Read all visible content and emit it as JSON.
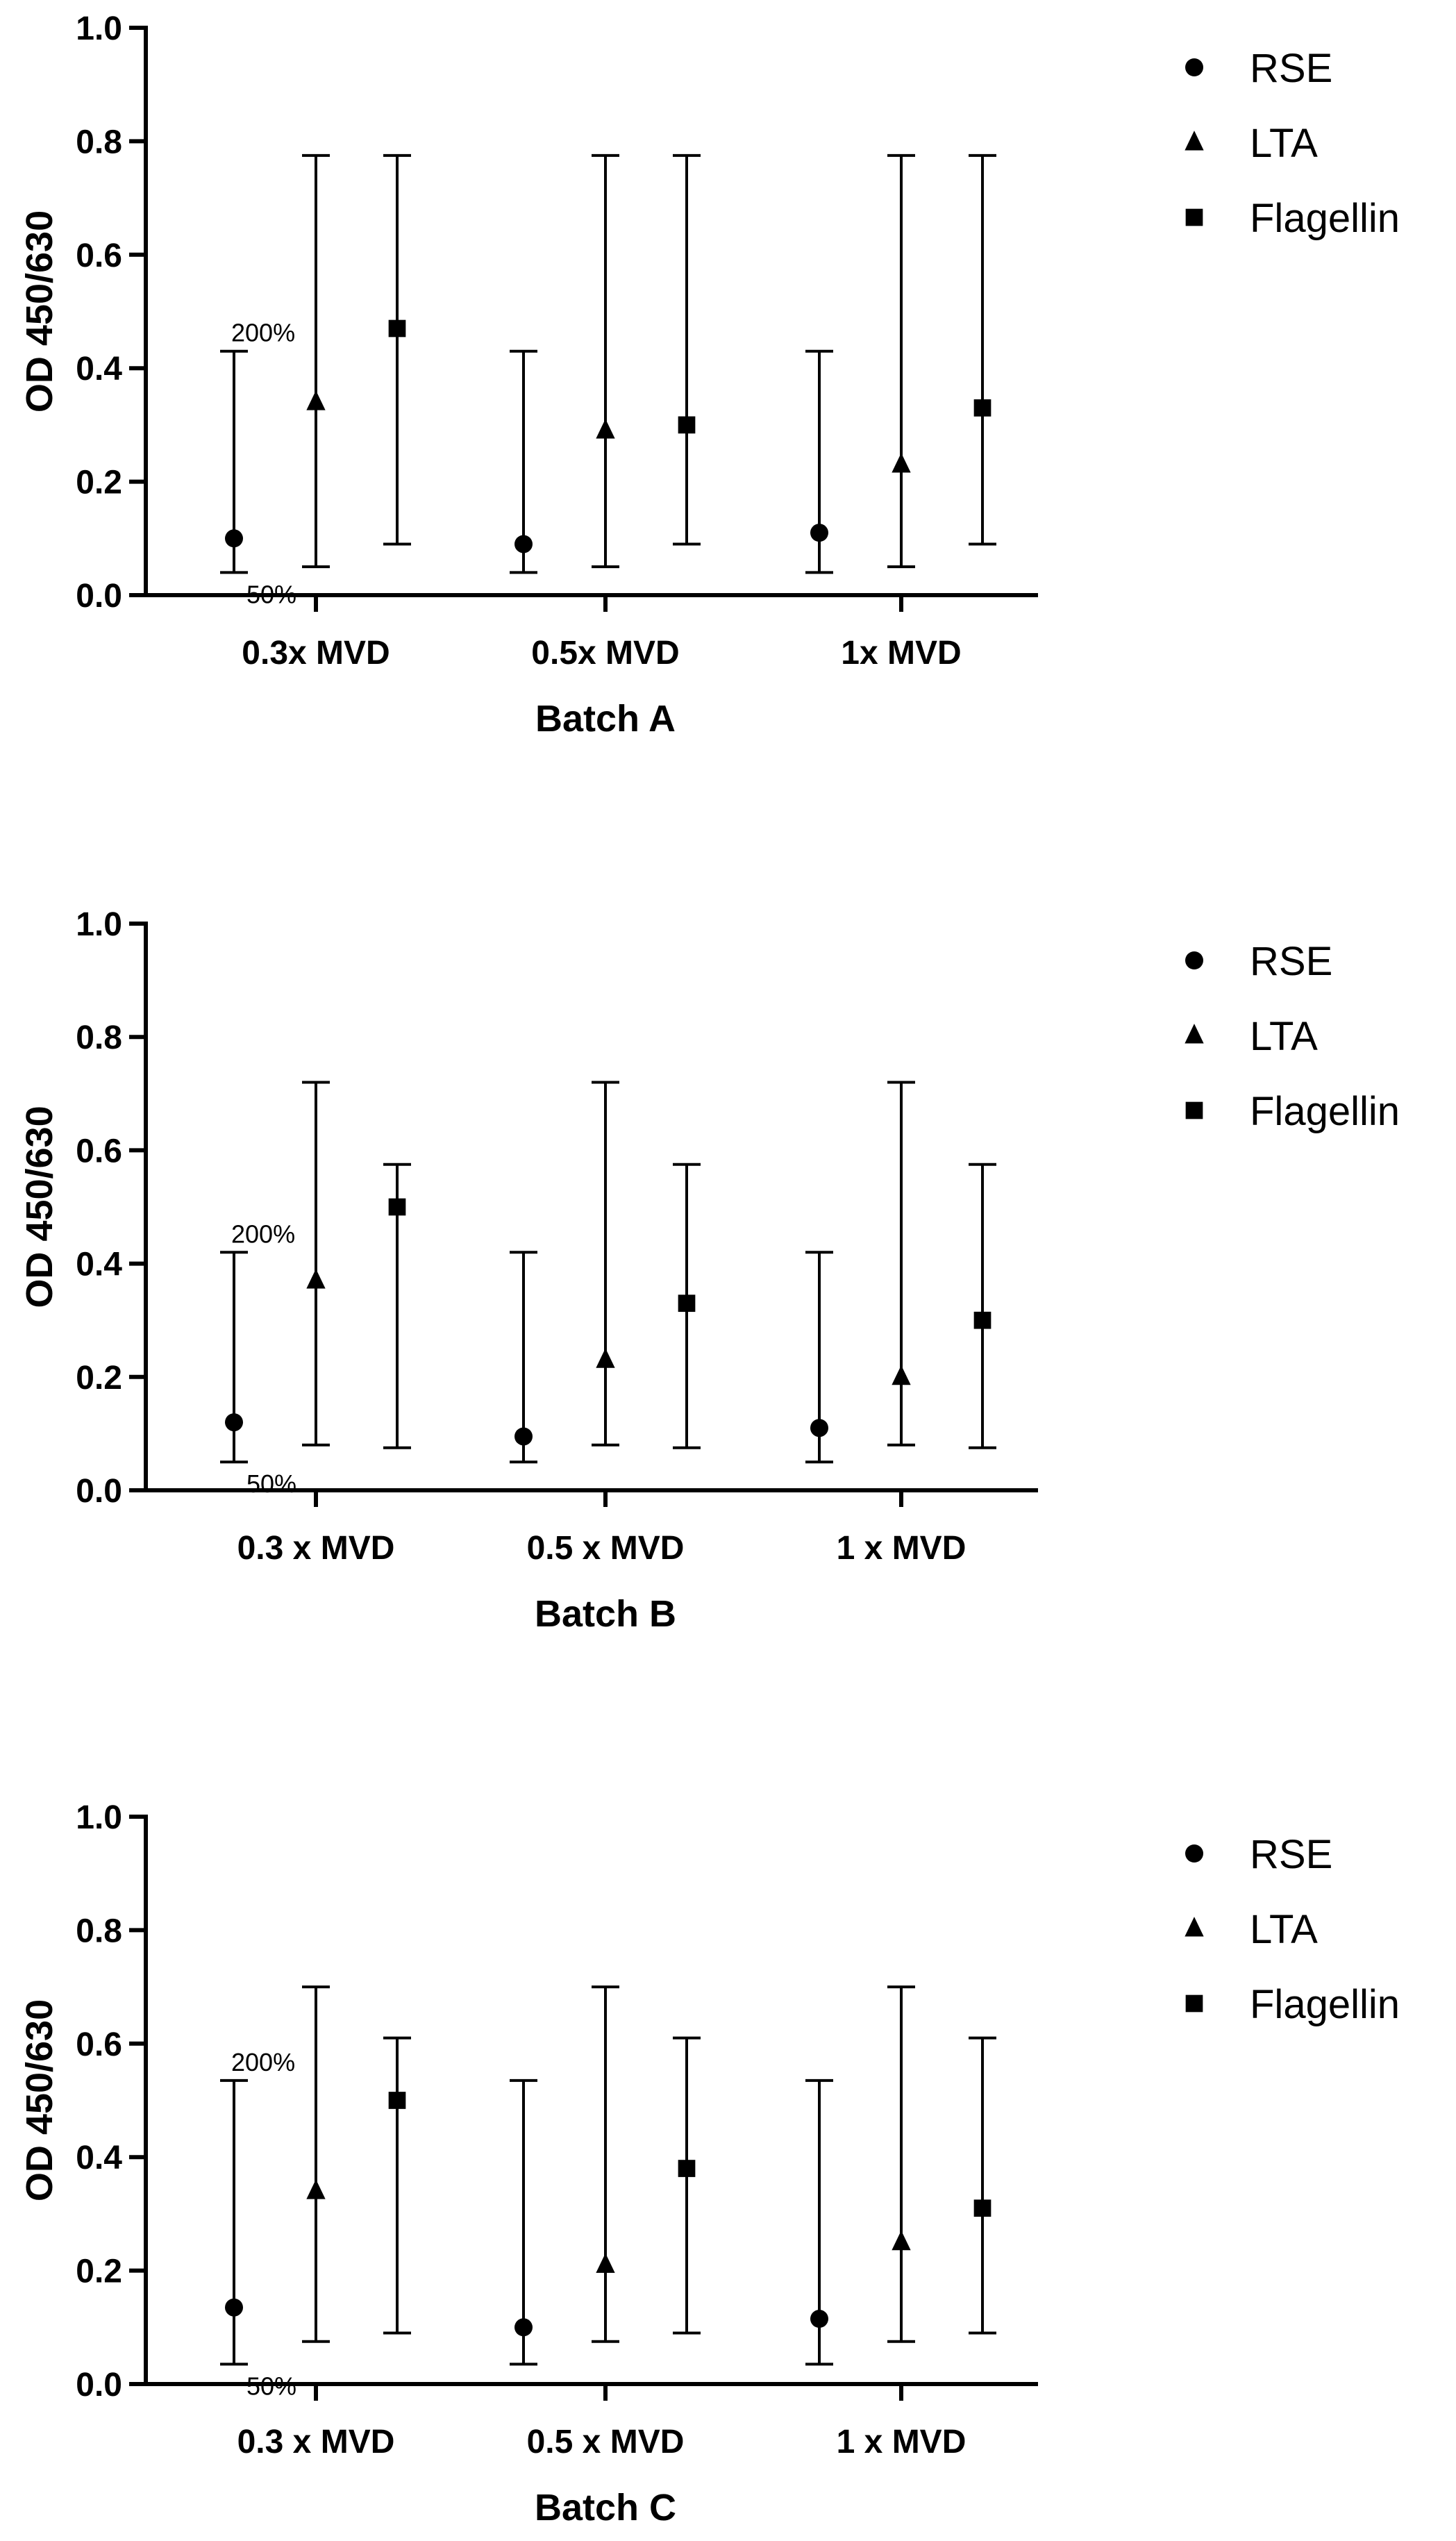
{
  "chart_data": [
    {
      "type": "scatter",
      "title": "",
      "xlabel": "Batch A",
      "ylabel": "OD 450/630",
      "ylim": [
        0,
        1.0
      ],
      "yticks": [
        "0.0",
        "0.2",
        "0.4",
        "0.6",
        "0.8",
        "1.0"
      ],
      "categories": [
        "0.3x MVD",
        "0.5x MVD",
        "1x MVD"
      ],
      "series": [
        {
          "name": "RSE",
          "marker": "circle",
          "values": [
            0.1,
            0.09,
            0.11
          ],
          "err_low": 0.04,
          "err_high": 0.43
        },
        {
          "name": "LTA",
          "marker": "triangle",
          "values": [
            0.34,
            0.29,
            0.23
          ],
          "err_low": 0.05,
          "err_high": 0.775
        },
        {
          "name": "Flagellin",
          "marker": "square",
          "values": [
            0.47,
            0.3,
            0.33
          ],
          "err_low": 0.09,
          "err_high": 0.775
        }
      ],
      "annotations": {
        "upper": "200%",
        "lower": "50%"
      }
    },
    {
      "type": "scatter",
      "title": "",
      "xlabel": "Batch B",
      "ylabel": "OD 450/630",
      "ylim": [
        0,
        1.0
      ],
      "yticks": [
        "0.0",
        "0.2",
        "0.4",
        "0.6",
        "0.8",
        "1.0"
      ],
      "categories": [
        "0.3 x MVD",
        "0.5 x MVD",
        "1 x MVD"
      ],
      "series": [
        {
          "name": "RSE",
          "marker": "circle",
          "values": [
            0.12,
            0.095,
            0.11
          ],
          "err_low": 0.05,
          "err_high": 0.42
        },
        {
          "name": "LTA",
          "marker": "triangle",
          "values": [
            0.37,
            0.23,
            0.2
          ],
          "err_low": 0.08,
          "err_high": 0.72
        },
        {
          "name": "Flagellin",
          "marker": "square",
          "values": [
            0.5,
            0.33,
            0.3
          ],
          "err_low": 0.075,
          "err_high": 0.575
        }
      ],
      "annotations": {
        "upper": "200%",
        "lower": "50%"
      }
    },
    {
      "type": "scatter",
      "title": "",
      "xlabel": "Batch C",
      "ylabel": "OD 450/630",
      "ylim": [
        0,
        1.0
      ],
      "yticks": [
        "0.0",
        "0.2",
        "0.4",
        "0.6",
        "0.8",
        "1.0"
      ],
      "categories": [
        "0.3 x MVD",
        "0.5 x MVD",
        "1 x MVD"
      ],
      "series": [
        {
          "name": "RSE",
          "marker": "circle",
          "values": [
            0.135,
            0.1,
            0.115
          ],
          "err_low": 0.035,
          "err_high": 0.535
        },
        {
          "name": "LTA",
          "marker": "triangle",
          "values": [
            0.34,
            0.21,
            0.25
          ],
          "err_low": 0.075,
          "err_high": 0.7
        },
        {
          "name": "Flagellin",
          "marker": "square",
          "values": [
            0.5,
            0.38,
            0.31
          ],
          "err_low": 0.09,
          "err_high": 0.61
        }
      ],
      "annotations": {
        "upper": "200%",
        "lower": "50%"
      }
    }
  ]
}
